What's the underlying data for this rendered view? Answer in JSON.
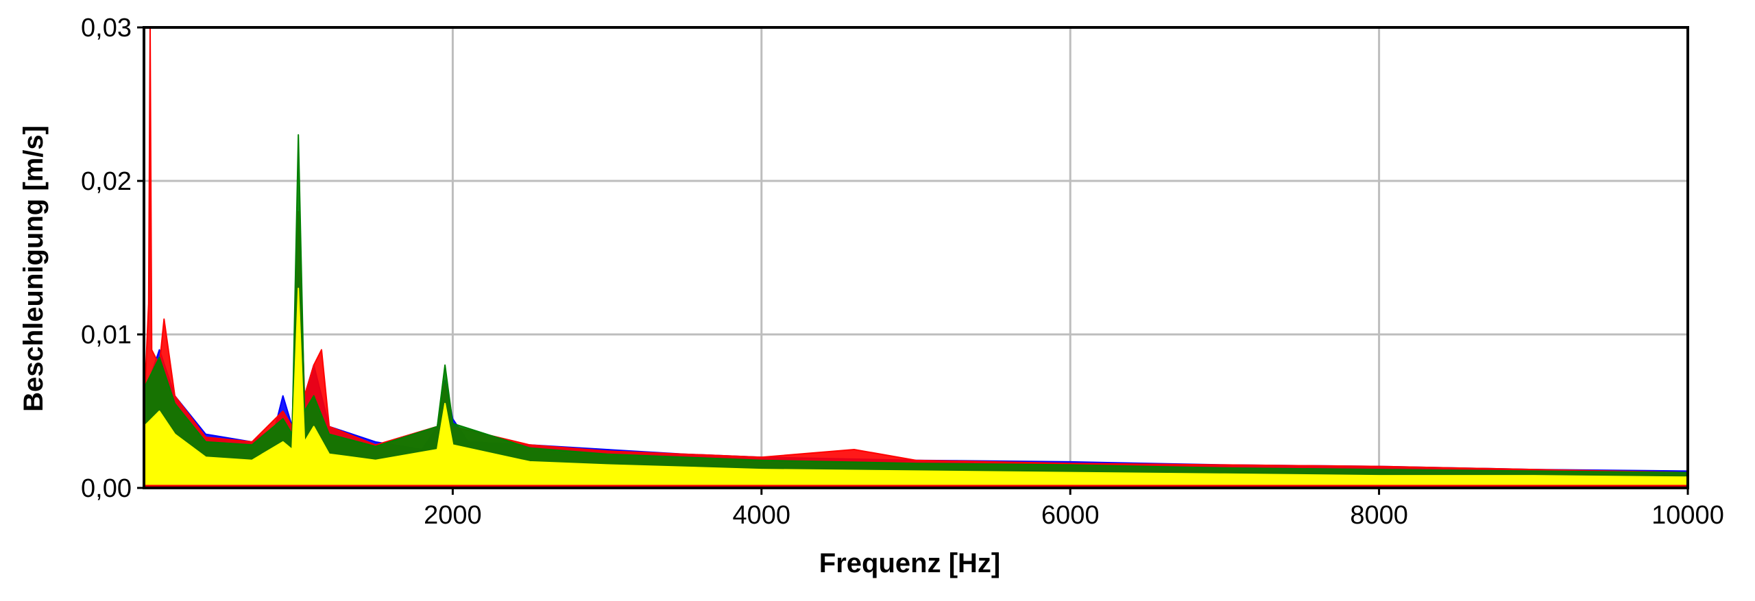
{
  "chart_data": {
    "type": "line",
    "title": "",
    "xlabel": "Frequenz [Hz]",
    "ylabel": "Beschleunigung [m/s]",
    "xlim": [
      0,
      10000
    ],
    "ylim": [
      0,
      0.03
    ],
    "x_ticks": [
      2000,
      4000,
      6000,
      8000,
      10000
    ],
    "x_tick_labels": [
      "2000",
      "4000",
      "6000",
      "8000",
      "10000"
    ],
    "y_ticks": [
      0,
      0.01,
      0.02,
      0.03
    ],
    "y_tick_labels": [
      "0,00",
      "0,01",
      "0,02",
      "0,03"
    ],
    "grid": true,
    "legend": "none",
    "series": [
      {
        "color": "#0000ff",
        "x": [
          0,
          100,
          200,
          400,
          700,
          850,
          900,
          960,
          1000,
          1040,
          1100,
          1200,
          1500,
          1800,
          1900,
          1950,
          2000,
          2100,
          2500,
          3000,
          3500,
          4000,
          5000,
          6000,
          7000,
          8000,
          9000,
          10000
        ],
        "y": [
          0.006,
          0.009,
          0.006,
          0.0035,
          0.003,
          0.004,
          0.006,
          0.004,
          0.014,
          0.006,
          0.008,
          0.004,
          0.003,
          0.0025,
          0.004,
          0.007,
          0.0045,
          0.003,
          0.0028,
          0.0025,
          0.0022,
          0.002,
          0.0018,
          0.0017,
          0.0015,
          0.0014,
          0.0012,
          0.0011
        ]
      },
      {
        "color": "#ff0000",
        "x": [
          0,
          30,
          40,
          50,
          100,
          130,
          200,
          400,
          700,
          900,
          960,
          1000,
          1040,
          1100,
          1150,
          1200,
          1500,
          1900,
          1950,
          2000,
          2500,
          3000,
          4000,
          4600,
          5000,
          6000,
          7000,
          8000,
          9000,
          10000
        ],
        "y": [
          0.005,
          0.012,
          0.03,
          0.009,
          0.008,
          0.011,
          0.006,
          0.0033,
          0.003,
          0.005,
          0.004,
          0.018,
          0.006,
          0.008,
          0.009,
          0.004,
          0.0028,
          0.004,
          0.0068,
          0.004,
          0.0028,
          0.0024,
          0.002,
          0.0025,
          0.0018,
          0.0016,
          0.0015,
          0.0014,
          0.0012,
          0.001
        ]
      },
      {
        "color": "#008000",
        "x": [
          0,
          100,
          200,
          400,
          700,
          900,
          960,
          1000,
          1040,
          1100,
          1200,
          1500,
          1900,
          1950,
          2000,
          2500,
          3000,
          4000,
          5000,
          6000,
          7000,
          8000,
          9000,
          10000
        ],
        "y": [
          0.0065,
          0.0085,
          0.0055,
          0.003,
          0.0028,
          0.0045,
          0.0035,
          0.023,
          0.005,
          0.006,
          0.0035,
          0.0027,
          0.004,
          0.008,
          0.0042,
          0.0026,
          0.0022,
          0.0018,
          0.0016,
          0.0015,
          0.0013,
          0.0012,
          0.0011,
          0.001
        ]
      },
      {
        "color": "#ffff00",
        "x": [
          0,
          100,
          200,
          400,
          700,
          900,
          960,
          1000,
          1040,
          1100,
          1200,
          1500,
          1900,
          1950,
          2000,
          2500,
          3000,
          4000,
          5000,
          6000,
          7000,
          8000,
          9000,
          10000
        ],
        "y": [
          0.004,
          0.005,
          0.0035,
          0.002,
          0.0018,
          0.003,
          0.0025,
          0.013,
          0.003,
          0.004,
          0.0022,
          0.0018,
          0.0025,
          0.0055,
          0.0028,
          0.0017,
          0.0015,
          0.0012,
          0.0011,
          0.001,
          0.0009,
          0.0008,
          0.0008,
          0.0007
        ]
      }
    ]
  }
}
